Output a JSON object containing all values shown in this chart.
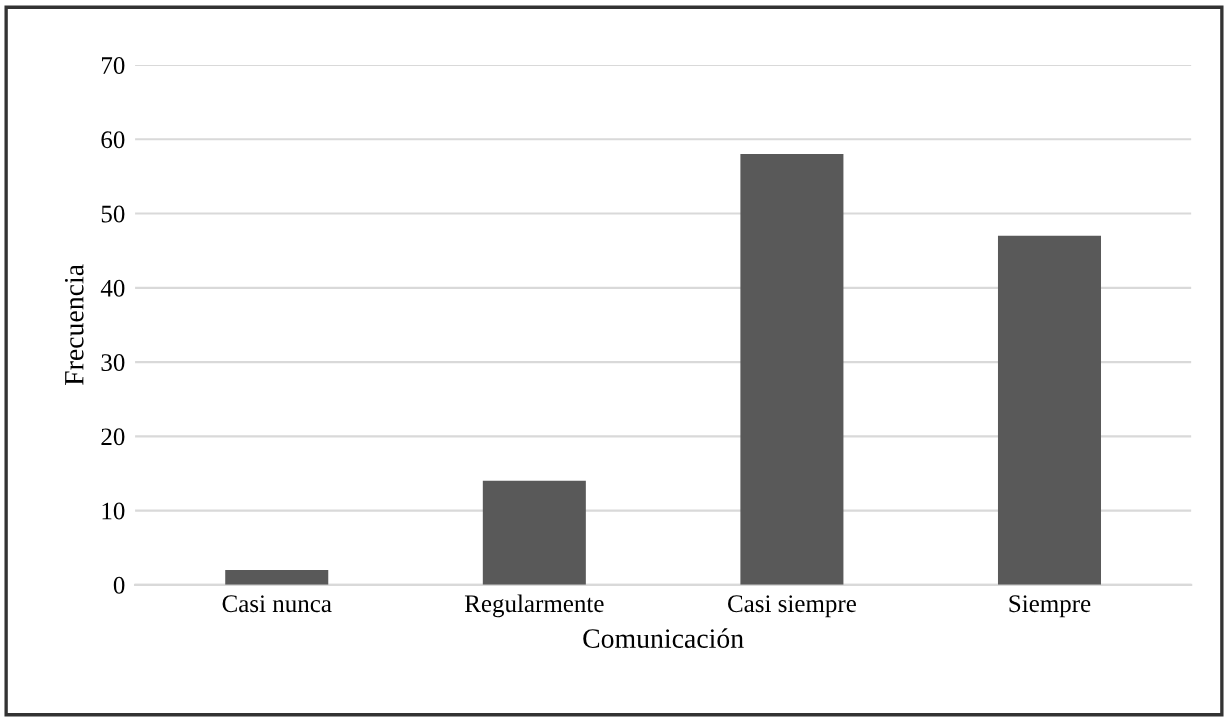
{
  "chart_data": {
    "type": "bar",
    "xlabel": "Comunicación",
    "ylabel": "Frecuencia",
    "categories": [
      "Casi nunca",
      "Regularmente",
      "Casi siempre",
      "Siempre"
    ],
    "values": [
      2,
      14,
      58,
      47
    ],
    "color": "#595959",
    "ylim": [
      0,
      70
    ],
    "yticks": [
      0,
      10,
      20,
      30,
      40,
      50,
      60,
      70
    ],
    "grid": "y"
  }
}
